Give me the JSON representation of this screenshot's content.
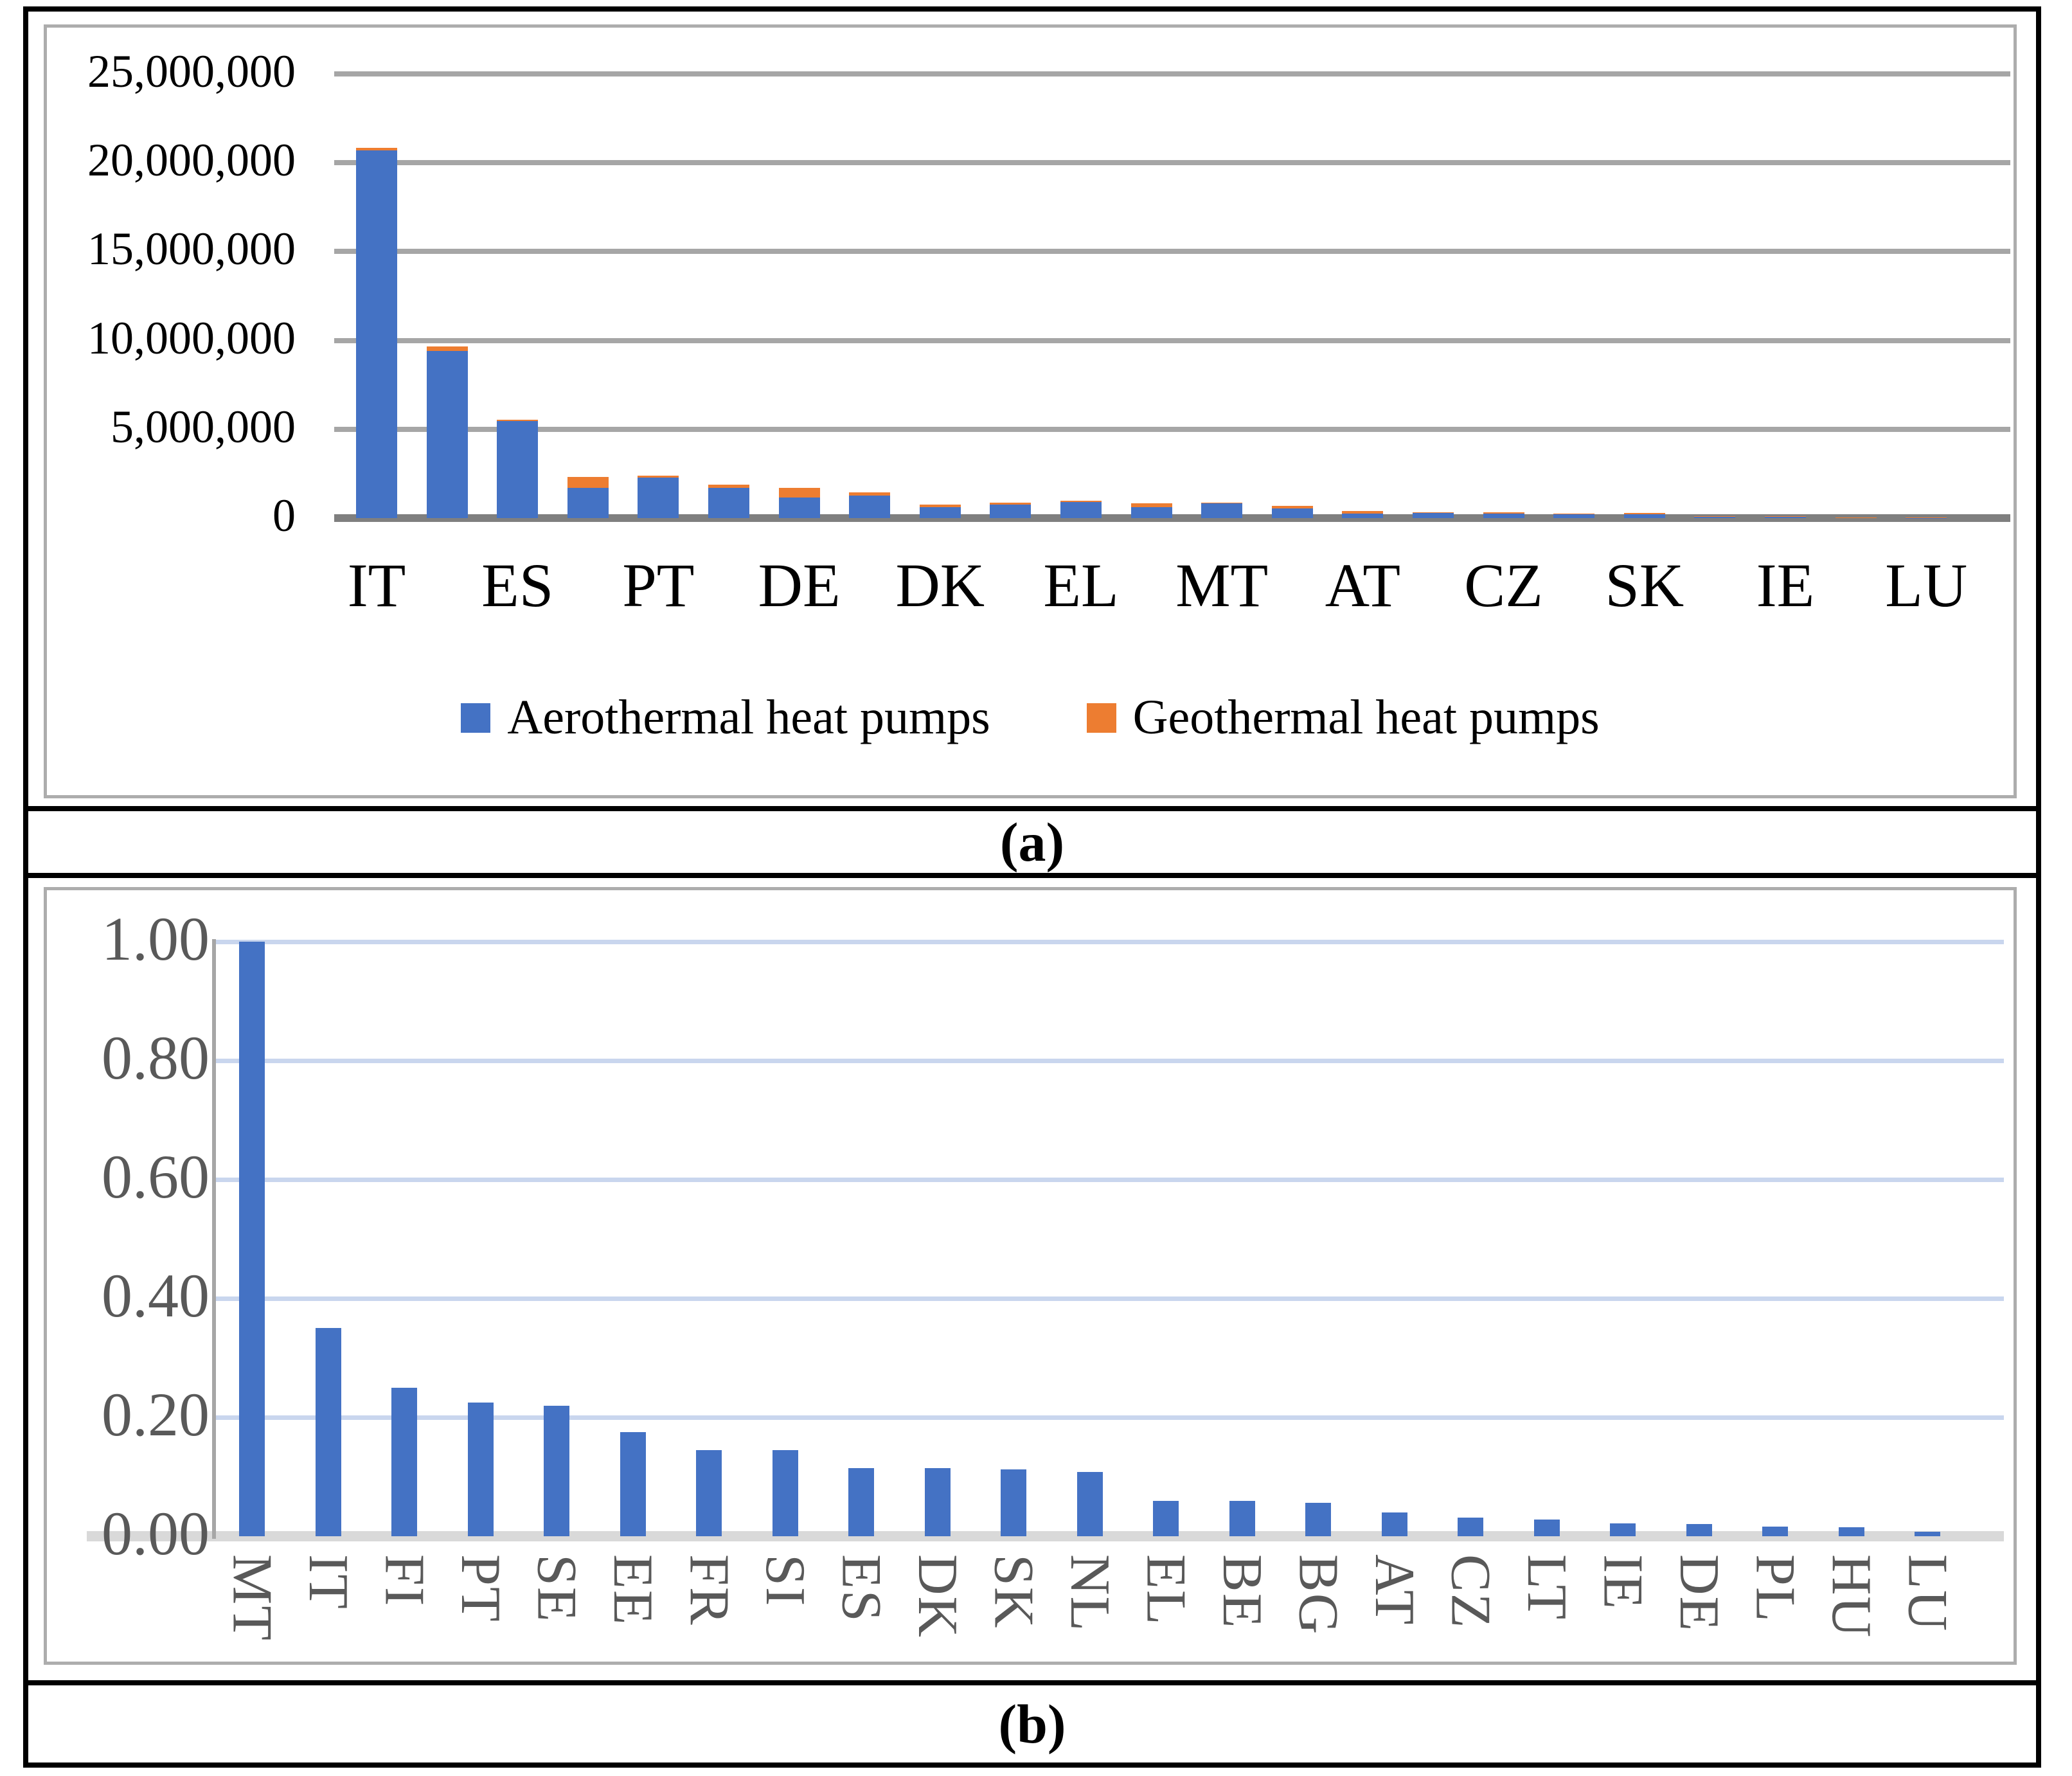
{
  "figure": {
    "caption_a": "(a)",
    "caption_b": "(b)"
  },
  "colors": {
    "aerothermal_blue": "#4472C4",
    "geothermal_orange": "#ED7D31",
    "chart_a_grid": "#A6A6A6",
    "chart_a_axis": "#7F7F7F",
    "chart_b_grid": "#C9D6EE",
    "chart_b_baseline": "#D9D9D9",
    "chart_b_text": "#595959",
    "frame_black": "#000000",
    "chart_border_gray": "#ADADAD"
  },
  "chart_data": [
    {
      "id": "a",
      "type": "bar",
      "stacked": true,
      "grid": true,
      "legend_position": "bottom",
      "categories": [
        "IT",
        "",
        "ES",
        "",
        "PT",
        "",
        "DE",
        "",
        "DK",
        "",
        "EL",
        "",
        "MT",
        "",
        "AT",
        "",
        "CZ",
        "",
        "SK",
        "",
        "IE",
        "",
        "LU"
      ],
      "series": [
        {
          "name": "Aerothermal heat pumps",
          "color": "#4472C4",
          "values": [
            20700000,
            9400000,
            5450000,
            1700000,
            2280000,
            1700000,
            1150000,
            1270000,
            620000,
            760000,
            900000,
            620000,
            860000,
            550000,
            250000,
            300000,
            240000,
            210000,
            210000,
            60000,
            60000,
            25000,
            12000
          ]
        },
        {
          "name": "Geothermal heat pumps",
          "color": "#ED7D31",
          "values": [
            150000,
            250000,
            100000,
            620000,
            100000,
            180000,
            550000,
            180000,
            150000,
            110000,
            80000,
            210000,
            10000,
            140000,
            130000,
            40000,
            100000,
            30000,
            80000,
            60000,
            50000,
            15000,
            8000
          ]
        }
      ],
      "ylim": [
        0,
        25000000
      ],
      "yticks": [
        {
          "value": 0,
          "label": "0"
        },
        {
          "value": 5000000,
          "label": "5,000,000"
        },
        {
          "value": 10000000,
          "label": "10,000,000"
        },
        {
          "value": 15000000,
          "label": "15,000,000"
        },
        {
          "value": 20000000,
          "label": "20,000,000"
        },
        {
          "value": 25000000,
          "label": "25,000,000"
        }
      ]
    },
    {
      "id": "b",
      "type": "bar",
      "stacked": false,
      "grid": true,
      "legend_position": "none",
      "bar_color": "#4472C4",
      "categories": [
        "MT",
        "IT",
        "FI",
        "PT",
        "SE",
        "EE",
        "FR",
        "SI",
        "ES",
        "DK",
        "SK",
        "NL",
        "EL",
        "BE",
        "BG",
        "AT",
        "CZ",
        "LT",
        "IE",
        "DE",
        "PL",
        "HU",
        "LU"
      ],
      "values": [
        1.0,
        0.35,
        0.25,
        0.225,
        0.22,
        0.175,
        0.145,
        0.145,
        0.115,
        0.115,
        0.112,
        0.108,
        0.06,
        0.059,
        0.056,
        0.04,
        0.031,
        0.028,
        0.022,
        0.021,
        0.016,
        0.015,
        0.008
      ],
      "ylim": [
        0,
        1.0
      ],
      "yticks": [
        {
          "value": 0,
          "label": "0.00"
        },
        {
          "value": 0.2,
          "label": "0.20"
        },
        {
          "value": 0.4,
          "label": "0.40"
        },
        {
          "value": 0.6,
          "label": "0.60"
        },
        {
          "value": 0.8,
          "label": "0.80"
        },
        {
          "value": 1.0,
          "label": "1.00"
        }
      ]
    }
  ]
}
